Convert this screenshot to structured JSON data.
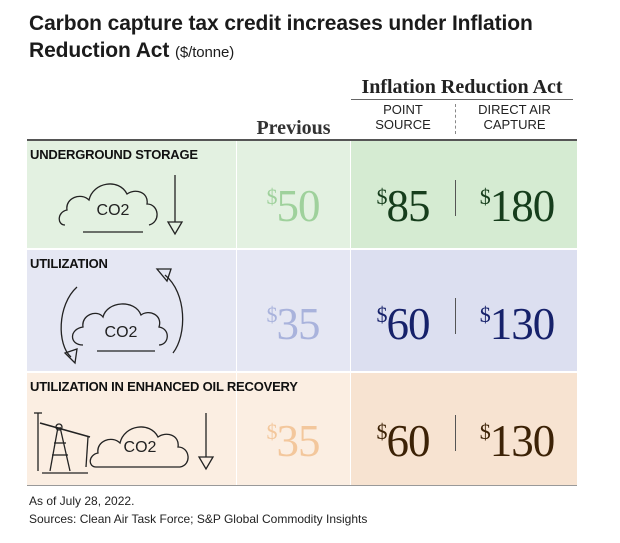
{
  "title": {
    "main": "Carbon capture tax credit increases under Inflation Reduction Act",
    "unit": "($/tonne)"
  },
  "headers": {
    "group": "Inflation Reduction Act",
    "previous": "Previous",
    "point_source": "POINT SOURCE",
    "direct_air_capture": "DIRECT AIR CAPTURE"
  },
  "colors": {
    "storage_bg": "#e3f1e1",
    "storage_ira_bg": "#d5ebd2",
    "storage_prev_text": "#9fd19c",
    "storage_ira_text": "#163d1c",
    "utilization_bg": "#e5e7f3",
    "utilization_ira_bg": "#dcdff0",
    "utilization_prev_text": "#a9b3dc",
    "utilization_ira_text": "#16216a",
    "eor_bg": "#fbeee2",
    "eor_ira_bg": "#f7e3d1",
    "eor_prev_text": "#f3c79c",
    "eor_ira_text": "#3c2206"
  },
  "chart_data": {
    "type": "table",
    "columns": [
      "Previous",
      "Point source",
      "Direct air capture"
    ],
    "rows": [
      {
        "category": "UNDERGROUND STORAGE",
        "icon": "co2-cloud-down-arrow-icon",
        "previous": 50,
        "point_source": 85,
        "direct_air_capture": 180
      },
      {
        "category": "UTILIZATION",
        "icon": "co2-cloud-recycle-arrows-icon",
        "previous": 35,
        "point_source": 60,
        "direct_air_capture": 130
      },
      {
        "category": "UTILIZATION IN ENHANCED OIL RECOVERY",
        "icon": "oil-derrick-co2-cloud-icon",
        "previous": 35,
        "point_source": 60,
        "direct_air_capture": 130
      }
    ],
    "currency_symbol": "$",
    "icon_text": "CO2"
  },
  "footer": {
    "note": "As of July 28, 2022.",
    "sources": "Sources: Clean Air Task Force; S&P Global Commodity Insights"
  }
}
